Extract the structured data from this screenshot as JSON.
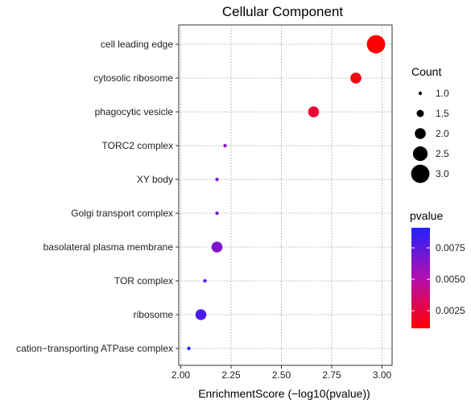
{
  "chart_data": {
    "type": "scatter",
    "title": "Cellular Component",
    "xlabel": "EnrichmentScore (−log10(pvalue))",
    "ylabel": "",
    "xlim": [
      1.99,
      3.05
    ],
    "xticks": [
      "2.00",
      "2.25",
      "2.50",
      "2.75",
      "3.00"
    ],
    "xtick_values": [
      2.0,
      2.25,
      2.5,
      2.75,
      3.0
    ],
    "grid": true,
    "categories": [
      "cell leading edge",
      "cytosolic ribosome",
      "phagocytic vesicle",
      "TORC2 complex",
      "XY body",
      "Golgi transport complex",
      "basolateral plasma membrane",
      "TOR complex",
      "ribosome",
      "cation−transporting ATPase complex"
    ],
    "points": [
      {
        "term": "cell leading edge",
        "x": 2.97,
        "count": 3,
        "pvalue": 0.0011
      },
      {
        "term": "cytosolic ribosome",
        "x": 2.87,
        "count": 2,
        "pvalue": 0.0013
      },
      {
        "term": "phagocytic vesicle",
        "x": 2.66,
        "count": 2,
        "pvalue": 0.0022
      },
      {
        "term": "TORC2 complex",
        "x": 2.22,
        "count": 1,
        "pvalue": 0.0061
      },
      {
        "term": "XY body",
        "x": 2.18,
        "count": 1,
        "pvalue": 0.0066
      },
      {
        "term": "Golgi transport complex",
        "x": 2.18,
        "count": 1,
        "pvalue": 0.0066
      },
      {
        "term": "basolateral plasma membrane",
        "x": 2.18,
        "count": 2,
        "pvalue": 0.0066
      },
      {
        "term": "TOR complex",
        "x": 2.12,
        "count": 1,
        "pvalue": 0.0076
      },
      {
        "term": "ribosome",
        "x": 2.1,
        "count": 2,
        "pvalue": 0.008
      },
      {
        "term": "cation−transporting ATPase complex",
        "x": 2.04,
        "count": 1,
        "pvalue": 0.0091
      }
    ],
    "size_legend": {
      "title": "Count",
      "labels": [
        "1.0",
        "1.5",
        "2.0",
        "2.5",
        "3.0"
      ],
      "values": [
        1.0,
        1.5,
        2.0,
        2.5,
        3.0
      ]
    },
    "color_legend": {
      "title": "pvalue",
      "labels": [
        "0.0075",
        "0.0050",
        "0.0025"
      ],
      "values": [
        0.0075,
        0.005,
        0.0025
      ],
      "range": [
        0.0011,
        0.0091
      ],
      "low_color": "#ff0000",
      "high_color": "#2222ff"
    },
    "legend_position": "right"
  }
}
